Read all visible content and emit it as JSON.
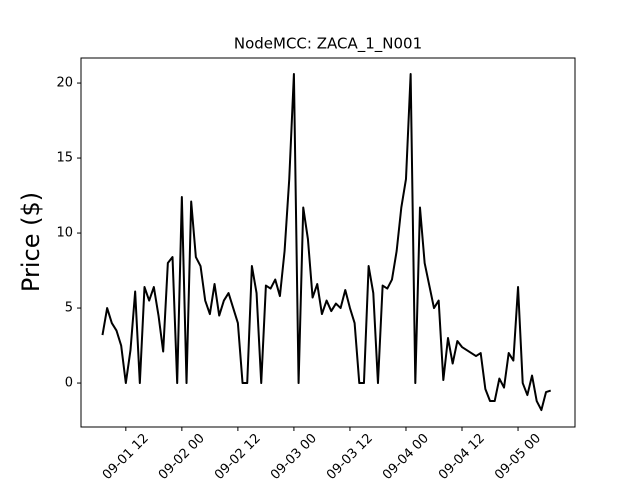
{
  "chart_data": {
    "type": "line",
    "title": "NodeMCC: ZACA_1_N001",
    "y_label": "Price ($)",
    "x": [
      7,
      8,
      9,
      10,
      11,
      12,
      13,
      14,
      15,
      16,
      17,
      18,
      19,
      20,
      21,
      22,
      23,
      24,
      25,
      26,
      27,
      28,
      29,
      30,
      31,
      32,
      33,
      34,
      35,
      36,
      37,
      38,
      39,
      40,
      41,
      42,
      43,
      44,
      45,
      46,
      47,
      48,
      49,
      50,
      51,
      52,
      53,
      54,
      55,
      56,
      57,
      58,
      59,
      60,
      61,
      62,
      63,
      64,
      65,
      66,
      67,
      68,
      69,
      70,
      71,
      72,
      73,
      74,
      75,
      76,
      77,
      78,
      79,
      80,
      81,
      82,
      83,
      84,
      85,
      86,
      87,
      88,
      89,
      90,
      91,
      92,
      93,
      94,
      95,
      96,
      97,
      98,
      99,
      100,
      101,
      102,
      103
    ],
    "values": [
      3.2,
      5.0,
      4.0,
      3.5,
      2.5,
      0,
      2.2,
      6.1,
      0,
      6.4,
      5.5,
      6.4,
      4.5,
      2.1,
      8.0,
      8.4,
      0,
      12.4,
      0,
      12.1,
      8.4,
      7.8,
      5.5,
      4.6,
      6.6,
      4.5,
      5.5,
      6.0,
      5.0,
      4.0,
      0,
      0,
      7.8,
      6.0,
      0,
      6.5,
      6.3,
      6.9,
      5.8,
      8.8,
      13.6,
      20.6,
      0,
      11.7,
      9.6,
      5.7,
      6.6,
      4.6,
      5.5,
      4.8,
      5.3,
      5.0,
      6.2,
      5.0,
      4.0,
      0,
      0,
      7.8,
      6.0,
      0,
      6.5,
      6.3,
      6.9,
      8.8,
      11.7,
      13.6,
      20.6,
      0,
      11.7,
      8.0,
      6.5,
      5.0,
      5.5,
      0.2,
      3.0,
      1.3,
      2.8,
      2.4,
      2.2,
      2.0,
      1.8,
      2.0,
      -0.4,
      -1.2,
      -1.2,
      0.3,
      -0.3,
      2.0,
      1.5,
      6.4,
      0,
      -0.8,
      0.5,
      -1.2,
      -1.8,
      -0.6,
      -0.5
    ],
    "color": "#000000",
    "xlim": [
      2.4,
      108.2
    ],
    "xticks": [
      {
        "value": 12,
        "label": "09-01 12"
      },
      {
        "value": 24,
        "label": "09-02 00"
      },
      {
        "value": 36,
        "label": "09-02 12"
      },
      {
        "value": 48,
        "label": "09-03 00"
      },
      {
        "value": 60,
        "label": "09-03 12"
      },
      {
        "value": 72,
        "label": "09-04 00"
      },
      {
        "value": 84,
        "label": "09-04 12"
      },
      {
        "value": 96,
        "label": "09-05 00"
      }
    ],
    "ylim": [
      -2.93,
      21.67
    ],
    "yticks": [
      0,
      5,
      10,
      15,
      20
    ]
  }
}
